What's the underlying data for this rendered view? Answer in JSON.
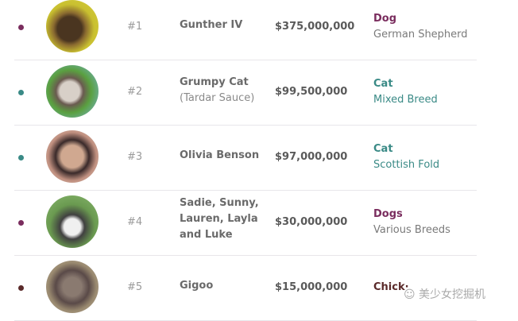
{
  "colors": {
    "dog": "#7a2d5e",
    "cat": "#3a8a86",
    "chicken": "#5a2a2a"
  },
  "rows": [
    {
      "rank": "#1",
      "name": "Gunther IV",
      "sub": "",
      "worth": "$375,000,000",
      "type": "Dog",
      "breed": "German Shepherd",
      "accent": "#7a2d5e"
    },
    {
      "rank": "#2",
      "name": "Grumpy Cat",
      "sub": "(Tardar Sauce)",
      "worth": "$99,500,000",
      "type": "Cat",
      "breed": "Mixed Breed",
      "accent": "#3a8a86"
    },
    {
      "rank": "#3",
      "name": "Olivia Benson",
      "sub": "",
      "worth": "$97,000,000",
      "type": "Cat",
      "breed": "Scottish Fold",
      "accent": "#3a8a86"
    },
    {
      "rank": "#4",
      "name": "Sadie, Sunny, Lauren, Layla and Luke",
      "sub": "",
      "worth": "$30,000,000",
      "type": "Dogs",
      "breed": "Various Breeds",
      "accent": "#7a2d5e"
    },
    {
      "rank": "#5",
      "name": "Gigoo",
      "sub": "",
      "worth": "$15,000,000",
      "type": "Chick·",
      "breed": "",
      "accent": "#5a2a2a"
    }
  ],
  "watermark": "美少女挖掘机"
}
